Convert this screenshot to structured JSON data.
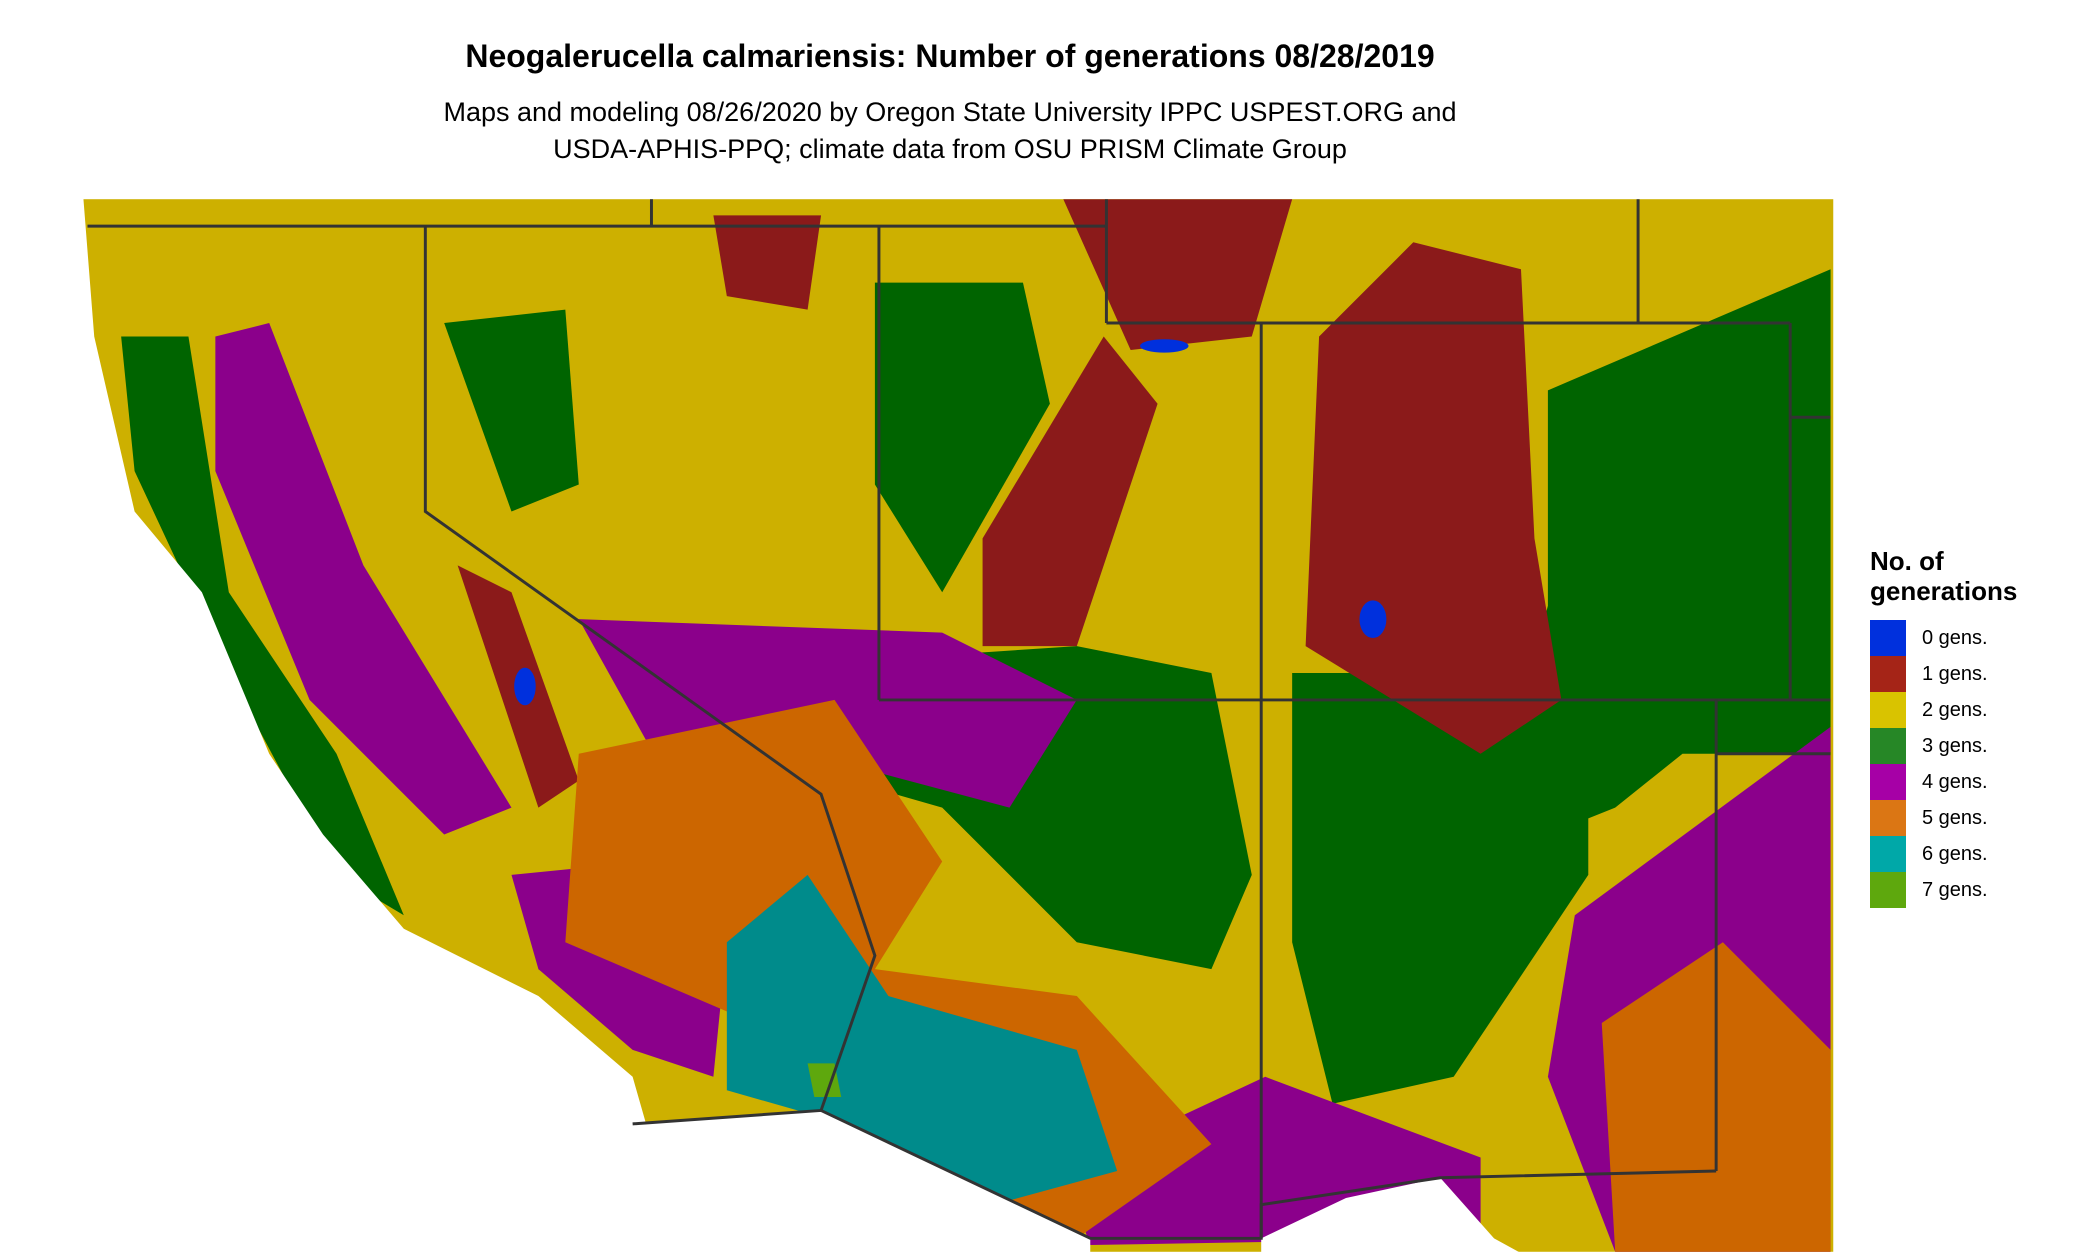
{
  "title": "Neogalerucella calmariensis: Number of generations 08/28/2019",
  "subtitle_line1": "Maps and modeling 08/26/2020 by Oregon State University IPPC USPEST.ORG and",
  "subtitle_line2": "USDA-APHIS-PPQ; climate data from OSU PRISM Climate Group",
  "map": {
    "region": "Southwestern United States",
    "border_color": "#333333"
  },
  "legend": {
    "title_line1": "No. of",
    "title_line2": "generations",
    "items": [
      {
        "label": "0 gens.",
        "color": "#0030DD"
      },
      {
        "label": "1 gens.",
        "color": "#A52417"
      },
      {
        "label": "2 gens.",
        "color": "#D9C300"
      },
      {
        "label": "3 gens.",
        "color": "#268726"
      },
      {
        "label": "4 gens.",
        "color": "#A600A6"
      },
      {
        "label": "5 gens.",
        "color": "#DB7614"
      },
      {
        "label": "6 gens.",
        "color": "#00A8A8"
      },
      {
        "label": "7 gens.",
        "color": "#5EA80D"
      }
    ]
  }
}
